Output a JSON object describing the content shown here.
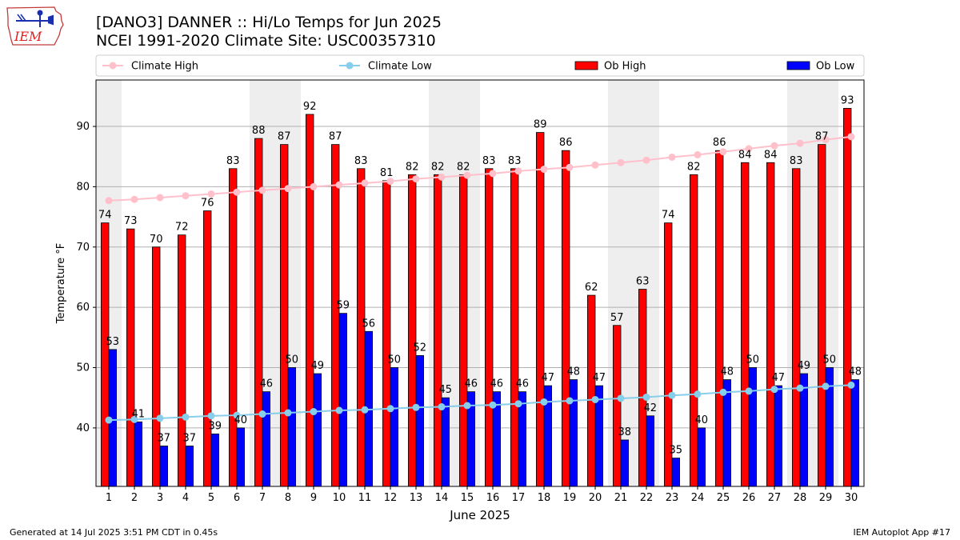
{
  "header": {
    "title_line1": "[DANO3] DANNER :: Hi/Lo Temps for Jun 2025",
    "title_line2": "NCEI 1991-2020 Climate Site: USC00357310",
    "logo_text": "IEM"
  },
  "footer": {
    "generated": "Generated at 14 Jul 2025 3:51 PM CDT in 0.45s",
    "app": "IEM Autoplot App #17"
  },
  "colors": {
    "ob_high": "#ff0000",
    "ob_low": "#0000ff",
    "climate_high": "#ffc0cb",
    "climate_low": "#87ceeb",
    "weekend_band": "#eeeeee"
  },
  "chart_data": {
    "type": "bar",
    "xlabel": "June 2025",
    "ylabel": "Temperature °F",
    "ylim": [
      30.3,
      97.7
    ],
    "yticks": [
      40,
      50,
      60,
      70,
      80,
      90
    ],
    "grid": true,
    "legend_position": "top",
    "categories": [
      1,
      2,
      3,
      4,
      5,
      6,
      7,
      8,
      9,
      10,
      11,
      12,
      13,
      14,
      15,
      16,
      17,
      18,
      19,
      20,
      21,
      22,
      23,
      24,
      25,
      26,
      27,
      28,
      29,
      30
    ],
    "weekend_days": [
      1,
      7,
      8,
      14,
      15,
      21,
      22,
      28,
      29
    ],
    "series": [
      {
        "name": "Ob High",
        "kind": "bar",
        "values": [
          74,
          73,
          70,
          72,
          76,
          83,
          88,
          87,
          92,
          87,
          83,
          81,
          82,
          82,
          82,
          83,
          83,
          89,
          86,
          62,
          57,
          63,
          74,
          82,
          86,
          84,
          84,
          83,
          87,
          93
        ],
        "labels": [
          "74",
          "73",
          "70",
          "72",
          "76",
          "83",
          "88",
          "87",
          "92",
          "87",
          "83",
          "81",
          "82",
          "82",
          "82",
          "83",
          "83",
          "89",
          "86",
          "62",
          "57",
          "63",
          "74",
          "82",
          "86",
          "84",
          "84",
          "83",
          "87",
          "93"
        ]
      },
      {
        "name": "Ob Low",
        "kind": "bar",
        "values": [
          53,
          41,
          37,
          37,
          39,
          40,
          46,
          50,
          49,
          59,
          56,
          50,
          52,
          45,
          46,
          46,
          46,
          47,
          48,
          47,
          38,
          42,
          35,
          40,
          48,
          50,
          47,
          49,
          50,
          48
        ],
        "labels": [
          "53",
          "41",
          "37",
          "37",
          "39",
          "40",
          "46",
          "50",
          "49",
          "59",
          "56",
          "50",
          "52",
          "45",
          "46",
          "46",
          "46",
          "47",
          "48",
          "47",
          "38",
          "42",
          "35",
          "40",
          "48",
          "50",
          "47",
          "49",
          "50",
          "48"
        ]
      },
      {
        "name": "Climate High",
        "kind": "line",
        "values": [
          77.7,
          77.9,
          78.2,
          78.5,
          78.8,
          79.1,
          79.4,
          79.7,
          80.0,
          80.3,
          80.6,
          80.9,
          81.3,
          81.6,
          81.9,
          82.2,
          82.6,
          82.9,
          83.2,
          83.6,
          84.0,
          84.4,
          84.9,
          85.3,
          85.8,
          86.3,
          86.8,
          87.2,
          87.8,
          88.3
        ]
      },
      {
        "name": "Climate Low",
        "kind": "line",
        "values": [
          41.3,
          41.4,
          41.6,
          41.8,
          42.0,
          42.1,
          42.3,
          42.5,
          42.7,
          42.9,
          43.0,
          43.2,
          43.4,
          43.5,
          43.7,
          43.8,
          44.0,
          44.3,
          44.5,
          44.7,
          44.9,
          45.1,
          45.4,
          45.6,
          45.9,
          46.1,
          46.4,
          46.6,
          46.9,
          47.1
        ]
      }
    ]
  }
}
